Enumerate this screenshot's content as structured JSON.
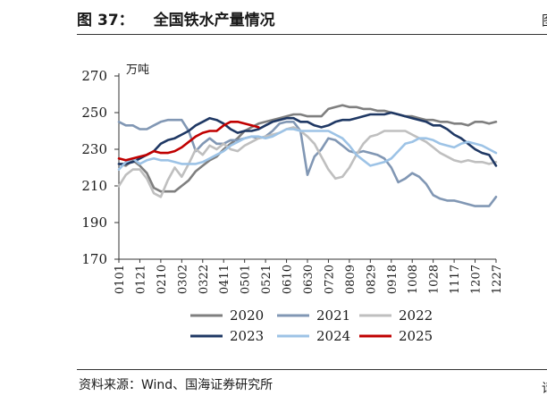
{
  "figure": {
    "prefix": "图",
    "number": "37：",
    "title": "全国铁水产量情况",
    "source": "资料来源：Wind、国海证券研究所",
    "edge_fragments": [
      "图",
      "请"
    ]
  },
  "chart_data": {
    "type": "line",
    "title": "全国铁水产量情况",
    "unit_label": "万吨",
    "xlabel": "",
    "ylabel": "万吨",
    "ylim": [
      170,
      270
    ],
    "yticks": [
      170,
      190,
      210,
      230,
      250,
      270
    ],
    "grid": false,
    "legend_position": "bottom",
    "x_tick_labels": [
      "0101",
      "0121",
      "0210",
      "0302",
      "0322",
      "0411",
      "0501",
      "0521",
      "0610",
      "0630",
      "0720",
      "0809",
      "0829",
      "0918",
      "1008",
      "1028",
      "1117",
      "1207",
      "1227"
    ],
    "colors": {
      "2020": "#7f7f7f",
      "2021": "#8197b4",
      "2022": "#bfbfbf",
      "2023": "#1f3864",
      "2024": "#9dc3e6",
      "2025": "#c00000"
    },
    "series": [
      {
        "name": "2020",
        "values": [
          222,
          221,
          224,
          221,
          217,
          209,
          207,
          207,
          207,
          210,
          213,
          218,
          221,
          224,
          226,
          230,
          233,
          236,
          240,
          242,
          244,
          245,
          246,
          247,
          248,
          249,
          249,
          248,
          248,
          248,
          252,
          253,
          254,
          253,
          253,
          252,
          252,
          251,
          251,
          250,
          249,
          248,
          248,
          247,
          246,
          246,
          245,
          245,
          244,
          244,
          243,
          245,
          245,
          244,
          245
        ]
      },
      {
        "name": "2021",
        "values": [
          245,
          243,
          243,
          241,
          241,
          243,
          245,
          246,
          246,
          246,
          240,
          229,
          233,
          236,
          233,
          233,
          235,
          235,
          236,
          237,
          236,
          237,
          240,
          244,
          245,
          245,
          240,
          216,
          226,
          230,
          236,
          235,
          232,
          229,
          228,
          229,
          228,
          227,
          225,
          220,
          212,
          214,
          217,
          215,
          211,
          205,
          203,
          202,
          202,
          201,
          200,
          199,
          199,
          199,
          204
        ]
      },
      {
        "name": "2022",
        "values": [
          210,
          216,
          219,
          219,
          214,
          206,
          204,
          213,
          220,
          215,
          222,
          230,
          227,
          232,
          230,
          233,
          230,
          229,
          232,
          234,
          236,
          237,
          238,
          239,
          241,
          242,
          240,
          237,
          233,
          226,
          219,
          214,
          215,
          220,
          227,
          233,
          237,
          238,
          240,
          240,
          240,
          240,
          238,
          236,
          234,
          231,
          228,
          226,
          224,
          223,
          224,
          223,
          223,
          222,
          223
        ]
      },
      {
        "name": "2023",
        "values": [
          222,
          222,
          223,
          225,
          227,
          229,
          233,
          235,
          236,
          238,
          240,
          243,
          245,
          247,
          246,
          244,
          241,
          239,
          240,
          240,
          241,
          243,
          245,
          246,
          247,
          247,
          245,
          245,
          243,
          242,
          243,
          245,
          246,
          246,
          247,
          248,
          249,
          249,
          249,
          250,
          249,
          248,
          247,
          246,
          245,
          243,
          243,
          241,
          238,
          236,
          233,
          230,
          228,
          227,
          221
        ]
      },
      {
        "name": "2024",
        "values": [
          219,
          223,
          225,
          222,
          224,
          225,
          224,
          224,
          223,
          222,
          222,
          222,
          223,
          225,
          227,
          229,
          232,
          234,
          236,
          237,
          237,
          236,
          237,
          239,
          241,
          241,
          240,
          240,
          240,
          240,
          240,
          238,
          236,
          232,
          227,
          224,
          221,
          222,
          223,
          225,
          229,
          233,
          234,
          236,
          236,
          235,
          233,
          232,
          231,
          233,
          234,
          233,
          232,
          230,
          228
        ]
      },
      {
        "name": "2025",
        "values": [
          225,
          224,
          225,
          226,
          227,
          229,
          228,
          228,
          229,
          231,
          234,
          237,
          239,
          240,
          240,
          243,
          245,
          245,
          244,
          243,
          242
        ]
      }
    ]
  }
}
